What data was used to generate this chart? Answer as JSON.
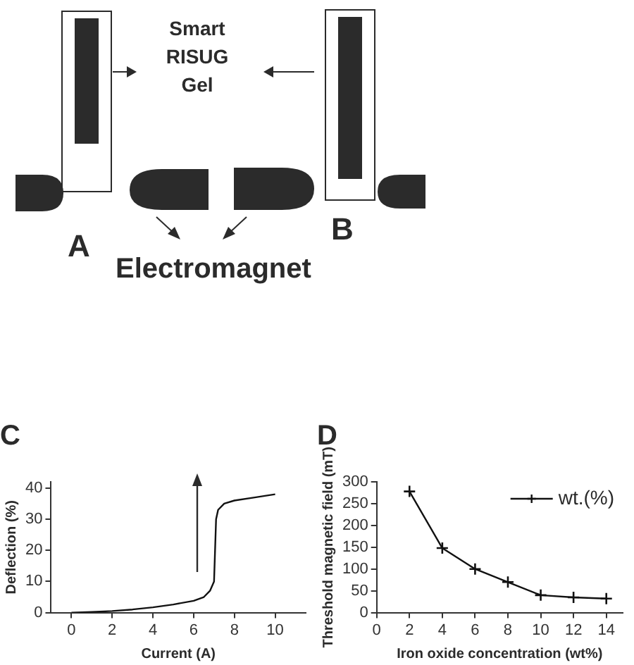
{
  "chart_data": [
    {
      "type": "other",
      "annotations": [
        "Smart RISUG Gel",
        "A",
        "B",
        "Electromagnet"
      ]
    },
    {
      "type": "line",
      "title": "C",
      "xlabel": "Current (A)",
      "ylabel": "Deflection (%)",
      "color": "#111111",
      "marker": "none",
      "xlim": [
        -1,
        11.5
      ],
      "xticks": [
        0,
        2,
        4,
        6,
        8,
        10
      ],
      "ylim": [
        0,
        42
      ],
      "yticks": [
        0,
        10,
        20,
        30,
        40
      ],
      "grid": false,
      "legend": false,
      "x": [
        0,
        1,
        2,
        3,
        4,
        5,
        6,
        6.5,
        6.8,
        7,
        7.05,
        7.1,
        7.2,
        7.5,
        8,
        9,
        10
      ],
      "values": [
        0,
        0.2,
        0.5,
        1,
        1.7,
        2.6,
        3.8,
        5,
        7,
        10,
        20,
        30,
        33,
        35,
        36,
        37,
        38
      ]
    },
    {
      "type": "line",
      "title": "D",
      "xlabel": "Iron oxide concentration (wt%)",
      "ylabel": "Threshold magnetic field (mT)",
      "marker": "cross",
      "xlim": [
        0,
        15
      ],
      "xticks": [
        0,
        2,
        4,
        6,
        8,
        10,
        12,
        14
      ],
      "ylim": [
        0,
        300
      ],
      "yticks": [
        0,
        50,
        100,
        150,
        200,
        250,
        300
      ],
      "grid": false,
      "legend": "top right",
      "x": [
        2,
        4,
        6,
        8,
        10,
        12,
        14
      ],
      "series": [
        {
          "name": "wt.(%)",
          "color": "#111111",
          "values": [
            278,
            148,
            100,
            70,
            40,
            35,
            32
          ]
        }
      ]
    }
  ]
}
